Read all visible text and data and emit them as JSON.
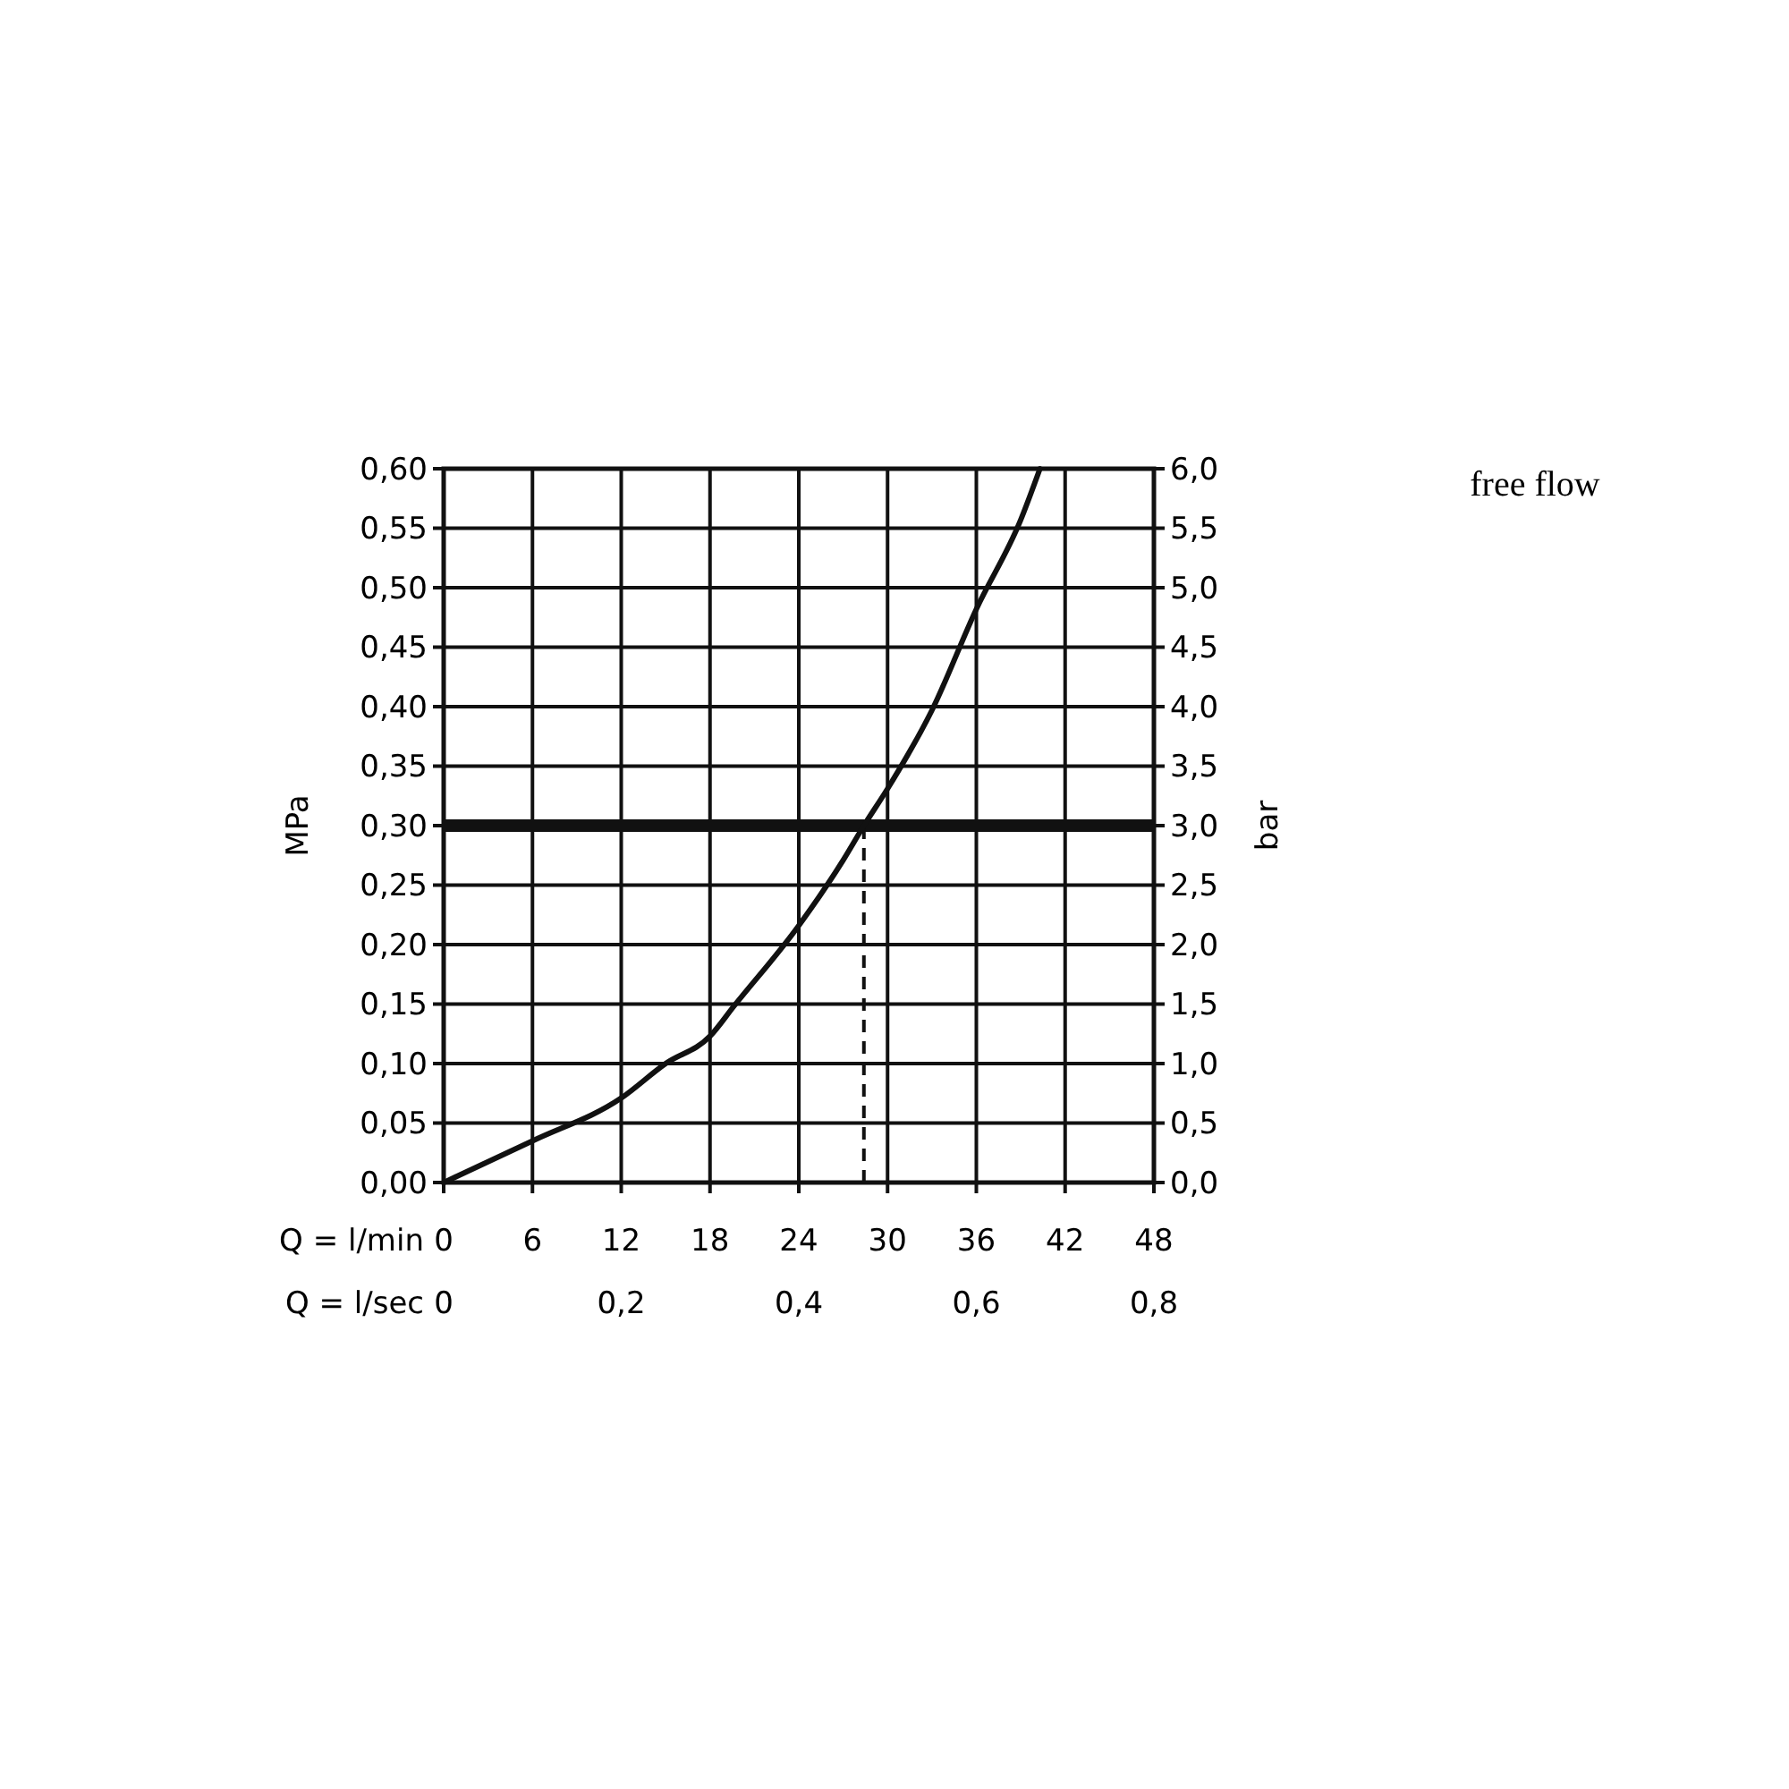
{
  "chart_data": {
    "type": "line",
    "title": "free flow",
    "xlabel": "Q = l/min",
    "x2label": "Q = l/sec",
    "ylabel": "MPa",
    "y2label": "bar",
    "x": [
      0,
      6,
      12,
      15,
      18,
      19.6,
      24,
      27,
      28.4,
      30,
      33,
      36,
      39,
      40.3
    ],
    "series": [
      {
        "color": "#111111",
        "values": [
          0,
          0.035,
          0.071,
          0.1,
          0.123,
          0.148,
          0.216,
          0.271,
          0.3,
          0.331,
          0.397,
          0.482,
          0.557,
          0.6
        ]
      }
    ],
    "xlim": [
      0,
      48
    ],
    "xticks": [
      0,
      6,
      12,
      18,
      24,
      30,
      36,
      42,
      48
    ],
    "x2lim": [
      0,
      0.8
    ],
    "x2ticks": [
      0,
      {
        "value": 0.2,
        "label": "0,2"
      },
      {
        "value": 0.4,
        "label": "0,4"
      },
      {
        "value": 0.6,
        "label": "0,6"
      },
      {
        "value": 0.8,
        "label": "0,8"
      }
    ],
    "ylim": [
      0,
      0.6
    ],
    "yticks": [
      {
        "value": 0,
        "label": "0,00"
      },
      {
        "value": 0.05,
        "label": "0,05"
      },
      {
        "value": 0.1,
        "label": "0,10"
      },
      {
        "value": 0.15,
        "label": "0,15"
      },
      {
        "value": 0.2,
        "label": "0,20"
      },
      {
        "value": 0.25,
        "label": "0,25"
      },
      {
        "value": 0.3,
        "label": "0,30"
      },
      {
        "value": 0.35,
        "label": "0,35"
      },
      {
        "value": 0.4,
        "label": "0,40"
      },
      {
        "value": 0.45,
        "label": "0,45"
      },
      {
        "value": 0.5,
        "label": "0,50"
      },
      {
        "value": 0.55,
        "label": "0,55"
      },
      {
        "value": 0.6,
        "label": "0,60"
      }
    ],
    "y2lim": [
      0,
      6
    ],
    "y2ticks": [
      {
        "value": 0,
        "label": "0,0"
      },
      {
        "value": 0.5,
        "label": "0,5"
      },
      {
        "value": 1,
        "label": "1,0"
      },
      {
        "value": 1.5,
        "label": "1,5"
      },
      {
        "value": 2,
        "label": "2,0"
      },
      {
        "value": 2.5,
        "label": "2,5"
      },
      {
        "value": 3,
        "label": "3,0"
      },
      {
        "value": 3.5,
        "label": "3,5"
      },
      {
        "value": 4,
        "label": "4,0"
      },
      {
        "value": 4.5,
        "label": "4,5"
      },
      {
        "value": 5,
        "label": "5,0"
      },
      {
        "value": 5.5,
        "label": "5,5"
      },
      {
        "value": 6,
        "label": "6,0"
      }
    ],
    "ref_lines": [
      {
        "axis": "y",
        "value": 0.3,
        "color": "#111111",
        "line_style": "solid"
      },
      {
        "axis": "x",
        "value": 28.4,
        "color": "#111111",
        "line_style": "dashed"
      }
    ],
    "grid": true,
    "marker": "none",
    "line_style": "solid"
  }
}
